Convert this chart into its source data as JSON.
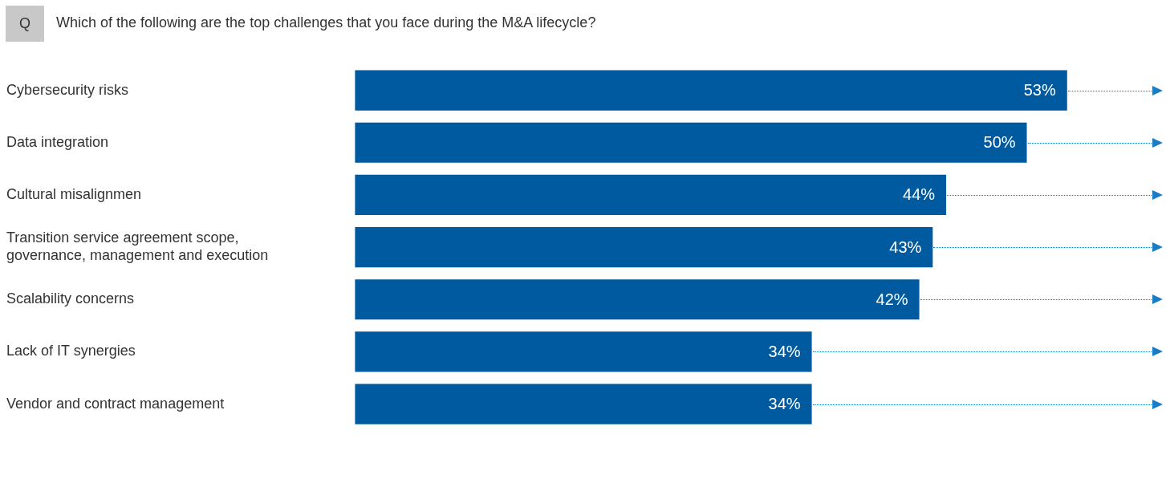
{
  "chart_data": {
    "type": "bar",
    "orientation": "horizontal",
    "title": "Which of the following are the top challenges that you face during the M&A lifecycle?",
    "annotations": [
      "Q"
    ],
    "categories": [
      "Cybersecurity risks",
      "Data integration",
      "Cultural misalignmen",
      "Transition service agreement scope, governance, management and execution",
      "Scalability concerns",
      "Lack of IT synergies",
      "Vendor and contract management"
    ],
    "values": [
      53,
      50,
      44,
      43,
      42,
      34,
      34
    ],
    "value_labels": [
      "53%",
      "50%",
      "44%",
      "43%",
      "42%",
      "34%",
      "34%"
    ],
    "color": "#005a9f",
    "legend": false,
    "tick_labels": "y"
  }
}
